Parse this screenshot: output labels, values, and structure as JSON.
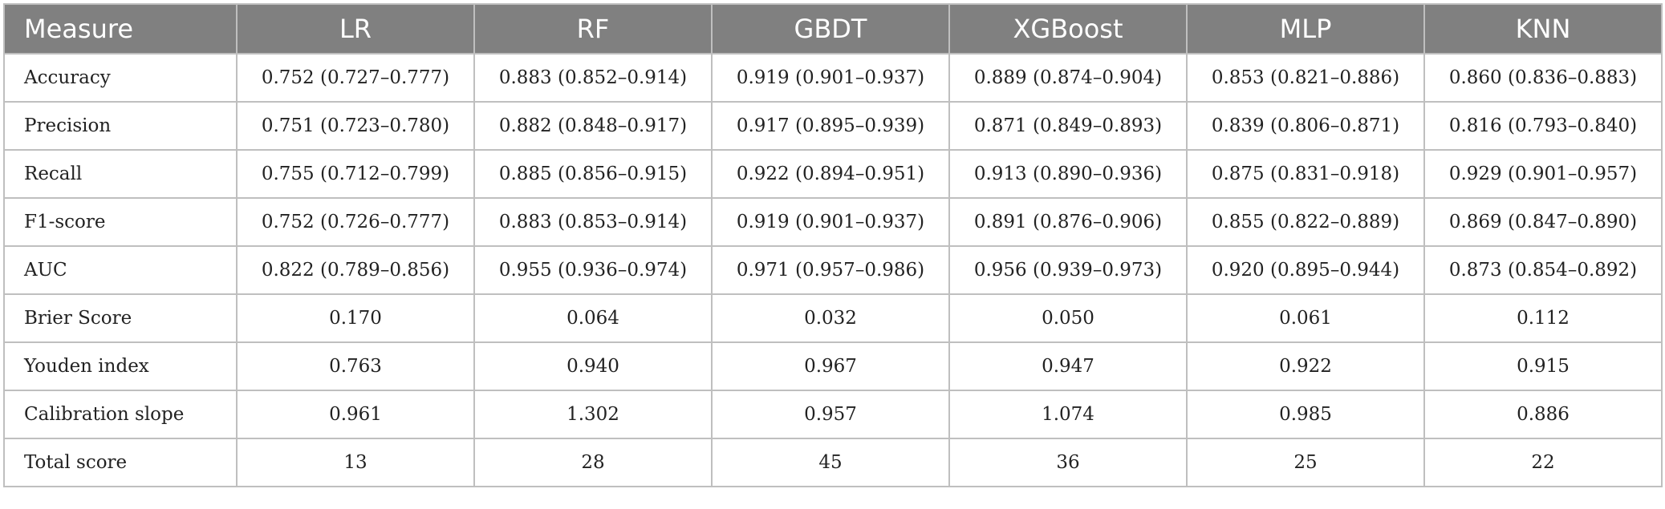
{
  "table": {
    "columns": [
      "Measure",
      "LR",
      "RF",
      "GBDT",
      "XGBoost",
      "MLP",
      "KNN"
    ],
    "rows": [
      [
        "Accuracy",
        "0.752 (0.727–0.777)",
        "0.883 (0.852–0.914)",
        "0.919 (0.901–0.937)",
        "0.889 (0.874–0.904)",
        "0.853 (0.821–0.886)",
        "0.860 (0.836–0.883)"
      ],
      [
        "Precision",
        "0.751 (0.723–0.780)",
        "0.882 (0.848–0.917)",
        "0.917 (0.895–0.939)",
        "0.871 (0.849–0.893)",
        "0.839 (0.806–0.871)",
        "0.816 (0.793–0.840)"
      ],
      [
        "Recall",
        "0.755 (0.712–0.799)",
        "0.885 (0.856–0.915)",
        "0.922 (0.894–0.951)",
        "0.913 (0.890–0.936)",
        "0.875 (0.831–0.918)",
        "0.929 (0.901–0.957)"
      ],
      [
        "F1-score",
        "0.752 (0.726–0.777)",
        "0.883 (0.853–0.914)",
        "0.919 (0.901–0.937)",
        "0.891 (0.876–0.906)",
        "0.855 (0.822–0.889)",
        "0.869 (0.847–0.890)"
      ],
      [
        "AUC",
        "0.822 (0.789–0.856)",
        "0.955 (0.936–0.974)",
        "0.971 (0.957–0.986)",
        "0.956 (0.939–0.973)",
        "0.920 (0.895–0.944)",
        "0.873 (0.854–0.892)"
      ],
      [
        "Brier Score",
        "0.170",
        "0.064",
        "0.032",
        "0.050",
        "0.061",
        "0.112"
      ],
      [
        "Youden index",
        "0.763",
        "0.940",
        "0.967",
        "0.947",
        "0.922",
        "0.915"
      ],
      [
        "Calibration slope",
        "0.961",
        "1.302",
        "0.957",
        "1.074",
        "0.985",
        "0.886"
      ],
      [
        "Total score",
        "13",
        "28",
        "45",
        "36",
        "25",
        "22"
      ]
    ]
  },
  "colors": {
    "header_bg": "#808080",
    "header_text": "#ffffff",
    "border": "#bfbfbf",
    "body_text": "#222222"
  }
}
